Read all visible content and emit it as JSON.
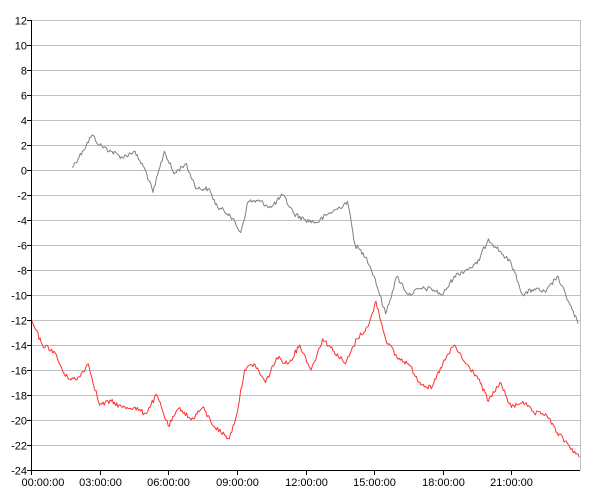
{
  "chart_data": {
    "type": "line",
    "title": "",
    "xlabel": "",
    "ylabel": "",
    "grid": "horizontal",
    "legend": "none",
    "ylim": [
      -24,
      12
    ],
    "y_ticks": [
      12,
      10,
      8,
      6,
      4,
      2,
      0,
      -2,
      -4,
      -6,
      -8,
      -10,
      -12,
      -14,
      -16,
      -18,
      -20,
      -22,
      -24
    ],
    "xlim": [
      "00:00:00",
      "24:00:00"
    ],
    "x_ticks": [
      "00:00:00",
      "03:00:00",
      "06:00:00",
      "09:00:00",
      "12:00:00",
      "15:00:00",
      "18:00:00",
      "21:00:00"
    ],
    "series": [
      {
        "color": "#808080",
        "x": [
          "01:48:00",
          "02:15:00",
          "02:40:00",
          "03:00:00",
          "03:30:00",
          "04:00:00",
          "04:30:00",
          "05:00:00",
          "05:20:00",
          "05:50:00",
          "06:15:00",
          "06:45:00",
          "07:15:00",
          "07:45:00",
          "08:10:00",
          "08:40:00",
          "09:10:00",
          "09:30:00",
          "10:00:00",
          "10:30:00",
          "11:00:00",
          "11:30:00",
          "12:00:00",
          "12:30:00",
          "13:00:00",
          "13:30:00",
          "13:50:00",
          "14:10:00",
          "14:40:00",
          "15:00:00",
          "15:30:00",
          "16:00:00",
          "16:30:00",
          "17:00:00",
          "17:30:00",
          "18:00:00",
          "18:30:00",
          "19:00:00",
          "19:30:00",
          "20:00:00",
          "20:30:00",
          "21:00:00",
          "21:30:00",
          "22:00:00",
          "22:30:00",
          "23:00:00",
          "23:30:00",
          "23:55:00"
        ],
        "values": [
          0.2,
          1.5,
          2.8,
          2.0,
          1.5,
          1.0,
          1.5,
          0.0,
          -1.8,
          1.5,
          -0.3,
          0.5,
          -1.5,
          -1.5,
          -3.0,
          -3.5,
          -5.0,
          -2.5,
          -2.5,
          -3.0,
          -2.0,
          -3.5,
          -4.0,
          -4.2,
          -3.5,
          -3.0,
          -2.5,
          -6.0,
          -7.0,
          -8.5,
          -11.5,
          -8.5,
          -10.0,
          -9.5,
          -9.5,
          -10.0,
          -8.5,
          -8.0,
          -7.5,
          -5.5,
          -6.5,
          -7.5,
          -10.0,
          -9.5,
          -9.8,
          -8.5,
          -10.5,
          -12.3
        ]
      },
      {
        "color": "#ff3030",
        "x": [
          "00:00:00",
          "00:30:00",
          "01:00:00",
          "01:30:00",
          "02:00:00",
          "02:30:00",
          "03:00:00",
          "03:30:00",
          "04:00:00",
          "04:30:00",
          "05:00:00",
          "05:30:00",
          "06:00:00",
          "06:30:00",
          "07:00:00",
          "07:30:00",
          "08:00:00",
          "08:40:00",
          "09:00:00",
          "09:20:00",
          "09:45:00",
          "10:15:00",
          "10:45:00",
          "11:15:00",
          "11:45:00",
          "12:15:00",
          "12:45:00",
          "13:15:00",
          "13:45:00",
          "14:15:00",
          "14:45:00",
          "15:05:00",
          "15:30:00",
          "16:00:00",
          "16:30:00",
          "17:00:00",
          "17:30:00",
          "18:00:00",
          "18:30:00",
          "19:00:00",
          "19:30:00",
          "20:00:00",
          "20:30:00",
          "21:00:00",
          "21:30:00",
          "22:00:00",
          "22:30:00",
          "23:00:00",
          "23:30:00",
          "23:58:00"
        ],
        "values": [
          -12.0,
          -14.0,
          -14.5,
          -16.5,
          -16.8,
          -15.5,
          -18.8,
          -18.5,
          -19.0,
          -19.0,
          -19.5,
          -18.0,
          -20.5,
          -19.0,
          -20.0,
          -19.0,
          -20.5,
          -21.5,
          -19.5,
          -16.0,
          -15.5,
          -17.0,
          -15.0,
          -15.5,
          -14.0,
          -16.0,
          -13.5,
          -14.5,
          -15.5,
          -13.5,
          -12.5,
          -10.5,
          -13.5,
          -15.0,
          -15.5,
          -17.0,
          -17.5,
          -15.5,
          -14.0,
          -15.5,
          -16.5,
          -18.5,
          -17.0,
          -19.0,
          -18.5,
          -19.5,
          -19.5,
          -21.0,
          -22.0,
          -23.0
        ]
      }
    ]
  }
}
